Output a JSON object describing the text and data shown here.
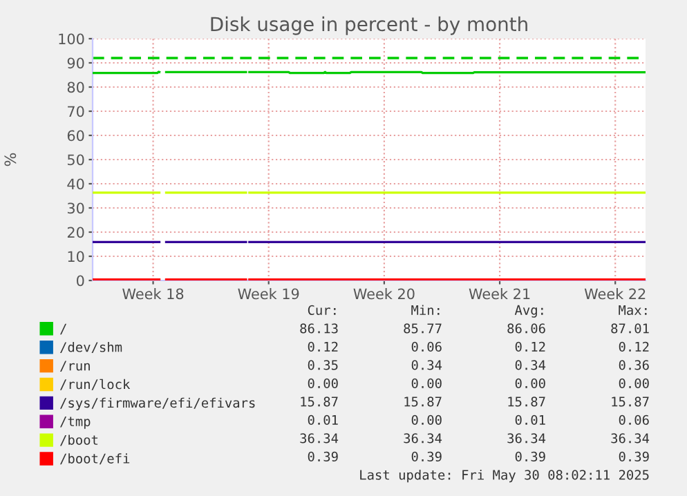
{
  "chart_data": {
    "type": "line",
    "title": "Disk usage in percent - by month",
    "ylabel": "%",
    "xlim": [
      "2025-04-26T20:00",
      "2025-05-30T08:00"
    ],
    "ylim": [
      0,
      100
    ],
    "xticks": [
      {
        "value": "2025-04-30T12:00",
        "label": "Week 18"
      },
      {
        "value": "2025-05-07T12:00",
        "label": "Week 19"
      },
      {
        "value": "2025-05-14T12:00",
        "label": "Week 20"
      },
      {
        "value": "2025-05-21T12:00",
        "label": "Week 21"
      },
      {
        "value": "2025-05-28T12:00",
        "label": "Week 22"
      }
    ],
    "yticks": [
      0,
      10,
      20,
      30,
      40,
      50,
      60,
      70,
      80,
      90,
      100
    ],
    "grid": true,
    "legend": "bottom",
    "marker": "none",
    "line_style": "solid",
    "ref_lines": [
      {
        "axis": "y",
        "value": 92,
        "color": "#00cc00",
        "line_style": "dashed"
      }
    ],
    "series": [
      {
        "name": "/",
        "color": "#00cc00",
        "x": [
          "2025-04-26T20:00",
          "2025-04-30T18:00",
          "2025-04-30T20:00",
          "2025-04-30T21:00",
          "2025-05-01T02:00",
          "2025-05-01T07:00",
          "2025-05-06T03:00",
          "2025-05-06T06:00",
          "2025-05-06T08:00",
          "2025-05-08T17:00",
          "2025-05-08T19:00",
          "2025-05-10T20:00",
          "2025-05-10T22:00",
          "2025-05-11T00:00",
          "2025-05-12T10:00",
          "2025-05-12T12:00",
          "2025-05-16T18:00",
          "2025-05-16T20:00",
          "2025-05-19T21:00",
          "2025-05-19T23:00",
          "2025-05-30T08:00"
        ],
        "values": [
          85.8,
          85.8,
          86.3,
          86.2,
          null,
          86.2,
          86.2,
          null,
          86.2,
          86.2,
          85.8,
          85.8,
          86.2,
          85.8,
          85.8,
          86.2,
          86.2,
          85.8,
          85.8,
          86.1,
          86.1
        ]
      },
      {
        "name": "/dev/shm",
        "color": "#0066b3"
      },
      {
        "name": "/run",
        "color": "#ff8000"
      },
      {
        "name": "/run/lock",
        "color": "#ffcc00"
      },
      {
        "name": "/sys/firmware/efi/efivars",
        "color": "#330099",
        "x": [
          "2025-04-26T20:00",
          "2025-04-30T21:00",
          "2025-05-01T02:00",
          "2025-05-01T07:00",
          "2025-05-06T03:00",
          "2025-05-06T06:00",
          "2025-05-06T08:00",
          "2025-05-30T08:00"
        ],
        "values": [
          15.9,
          15.9,
          null,
          15.9,
          15.9,
          null,
          15.9,
          15.9
        ]
      },
      {
        "name": "/tmp",
        "color": "#990099"
      },
      {
        "name": "/boot",
        "color": "#ccff00",
        "x": [
          "2025-04-26T20:00",
          "2025-04-30T21:00",
          "2025-05-01T02:00",
          "2025-05-01T07:00",
          "2025-05-06T03:00",
          "2025-05-06T06:00",
          "2025-05-06T08:00",
          "2025-05-30T08:00"
        ],
        "values": [
          36.3,
          36.3,
          null,
          36.3,
          36.3,
          null,
          36.3,
          36.3
        ]
      },
      {
        "name": "/boot/efi",
        "color": "#ff0000",
        "x": [
          "2025-04-26T20:00",
          "2025-04-30T21:00",
          "2025-05-01T02:00",
          "2025-05-01T07:00",
          "2025-05-06T03:00",
          "2025-05-06T06:00",
          "2025-05-06T08:00",
          "2025-05-30T08:00"
        ],
        "values": [
          0.4,
          0.4,
          null,
          0.4,
          0.4,
          null,
          0.4,
          0.4
        ]
      }
    ],
    "annotations": [
      "Cur:",
      "Min:",
      "Avg:",
      "Max:",
      "86.13",
      "85.77",
      "86.06",
      "87.01",
      "0.12",
      "0.06",
      "0.12",
      "0.12",
      "0.35",
      "0.34",
      "0.34",
      "0.36",
      "0.00",
      "0.00",
      "0.00",
      "0.00",
      "15.87",
      "15.87",
      "15.87",
      "15.87",
      "0.01",
      "0.00",
      "0.01",
      "0.06",
      "36.34",
      "36.34",
      "36.34",
      "36.34",
      "0.39",
      "0.39",
      "0.39",
      "0.39",
      "Last update: Fri May 30 08:02:11 2025"
    ]
  }
}
